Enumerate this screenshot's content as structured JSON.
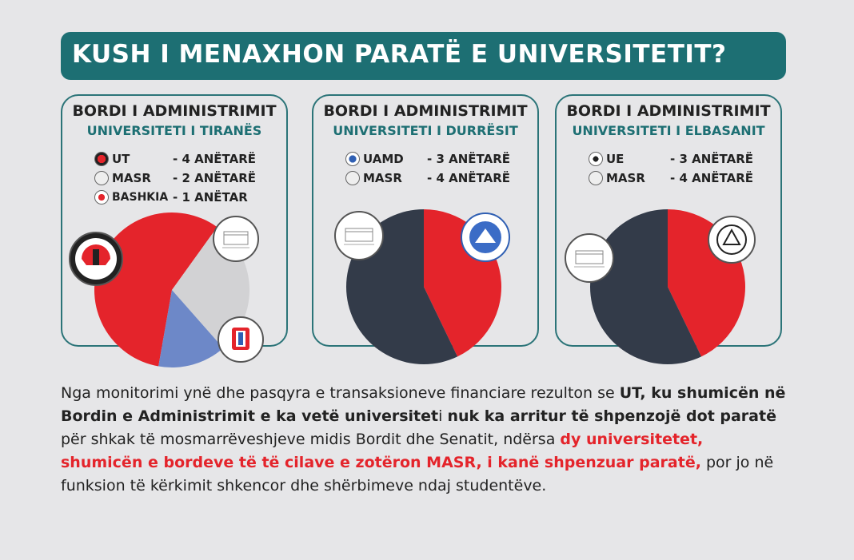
{
  "title": "KUSH I MENAXHON PARATË E UNIVERSITETIT?",
  "colors": {
    "teal": "#1d6f73",
    "red": "#e4242b",
    "navy": "#333b49",
    "gray": "#d2d2d4",
    "blue": "#6d88c8"
  },
  "chart_data": [
    {
      "type": "pie",
      "title": "BORDI I ADMINISTRIMIT",
      "subtitle": "UNIVERSITETI I TIRANËS",
      "categories": [
        "UT",
        "MASR",
        "BASHKIA"
      ],
      "values": [
        4,
        2,
        1
      ],
      "value_labels": [
        "- 4 ANËTARË",
        "- 2 ANËTARË",
        "- 1 ANËTAR"
      ],
      "colors": [
        "#e4242b",
        "#d2d2d4",
        "#6d88c8"
      ]
    },
    {
      "type": "pie",
      "title": "BORDI I ADMINISTRIMIT",
      "subtitle": "UNIVERSITETI I DURRËSIT",
      "categories": [
        "UAMD",
        "MASR"
      ],
      "values": [
        3,
        4
      ],
      "value_labels": [
        "- 3 ANËTARË",
        "- 4 ANËTARË"
      ],
      "colors": [
        "#e4242b",
        "#333b49"
      ]
    },
    {
      "type": "pie",
      "title": "BORDI I ADMINISTRIMIT",
      "subtitle": "UNIVERSITETI I ELBASANIT",
      "categories": [
        "UE",
        "MASR"
      ],
      "values": [
        3,
        4
      ],
      "value_labels": [
        "- 3 ANËTARË",
        "- 4 ANËTARË"
      ],
      "colors": [
        "#e4242b",
        "#333b49"
      ]
    }
  ],
  "paragraph": {
    "s1": "Nga monitorimi ynë dhe pasqyra e transaksioneve financiare rezulton se ",
    "s2": "UT, ku shumicën në Bordin e Administrimit e ka vetë universitet",
    "s3": "i ",
    "s4": "nuk ka arritur të shpenzojë dot paratë",
    "s5": " për shkak të mosmarrëveshjeve midis Bordit dhe Senatit, ndërsa ",
    "s6": "dy universitetet, shumicën e bordeve të të cilave e zotëron MASR, i kanë shpenzuar paratë,",
    "s7": " por jo në funksion të kërkimit shkencor dhe shërbimeve ndaj studentëve."
  }
}
